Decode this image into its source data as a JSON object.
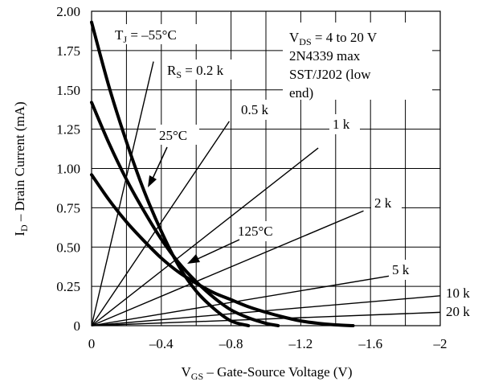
{
  "chart_data": {
    "type": "line",
    "xlabel": "V_GS – Gate-Source Voltage (V)",
    "ylabel": "I_D – Drain Current (mA)",
    "xlim": [
      0,
      -2
    ],
    "ylim": [
      0,
      2.0
    ],
    "grid": true,
    "x_ticks": [
      0,
      -0.4,
      -0.8,
      -1.2,
      -1.6,
      -2
    ],
    "x_tick_labels": [
      "0",
      "–0.4",
      "–0.8",
      "–1.2",
      "–1.6",
      "–2"
    ],
    "y_ticks": [
      0,
      0.25,
      0.5,
      0.75,
      1.0,
      1.25,
      1.5,
      1.75,
      2.0
    ],
    "y_tick_labels": [
      "0",
      "0.25",
      "0.50",
      "0.75",
      "1.00",
      "1.25",
      "1.50",
      "1.75",
      "2.00"
    ],
    "info_box": [
      "V_DS = 4 to 20 V",
      "2N4339 max",
      "SST/J202 (low",
      "end)"
    ],
    "transfer_curves": [
      {
        "name": "T_J = –55°C",
        "x": [
          0,
          -0.1,
          -0.2,
          -0.3,
          -0.4,
          -0.5,
          -0.6,
          -0.7,
          -0.8,
          -0.9
        ],
        "y": [
          1.93,
          1.52,
          1.17,
          0.86,
          0.6,
          0.38,
          0.22,
          0.11,
          0.03,
          0.0
        ]
      },
      {
        "name": "25°C",
        "x": [
          0,
          -0.1,
          -0.2,
          -0.3,
          -0.4,
          -0.5,
          -0.6,
          -0.7,
          -0.8,
          -0.9,
          -1.0,
          -1.07
        ],
        "y": [
          1.42,
          1.16,
          0.93,
          0.73,
          0.55,
          0.4,
          0.28,
          0.18,
          0.1,
          0.05,
          0.015,
          0.0
        ]
      },
      {
        "name": "125°C",
        "x": [
          0,
          -0.1,
          -0.2,
          -0.3,
          -0.4,
          -0.5,
          -0.6,
          -0.7,
          -0.8,
          -0.9,
          -1.0,
          -1.1,
          -1.2,
          -1.3,
          -1.4,
          -1.5
        ],
        "y": [
          0.96,
          0.8,
          0.66,
          0.54,
          0.43,
          0.34,
          0.27,
          0.21,
          0.165,
          0.12,
          0.085,
          0.055,
          0.03,
          0.015,
          0.005,
          0.0
        ]
      }
    ],
    "load_lines": [
      {
        "label": "R_S = 0.2 k",
        "x": [
          0,
          -0.355
        ],
        "y": [
          0,
          1.68
        ]
      },
      {
        "label": "0.5 k",
        "x": [
          0,
          -0.79
        ],
        "y": [
          0,
          1.3
        ]
      },
      {
        "label": "1 k",
        "x": [
          0,
          -1.3
        ],
        "y": [
          0,
          1.13
        ]
      },
      {
        "label": "2 k",
        "x": [
          0,
          -1.56
        ],
        "y": [
          0,
          0.73
        ]
      },
      {
        "label": "5 k",
        "x": [
          0,
          -1.73
        ],
        "y": [
          0,
          0.32
        ]
      },
      {
        "label": "10 k",
        "x": [
          0,
          -2.0
        ],
        "y": [
          0,
          0.19
        ]
      },
      {
        "label": "20 k",
        "x": [
          0,
          -2.0
        ],
        "y": [
          0,
          0.085
        ]
      }
    ],
    "annotations": [
      {
        "text": "T_J = –55°C"
      },
      {
        "text": "25°C"
      },
      {
        "text": "125°C"
      }
    ]
  }
}
